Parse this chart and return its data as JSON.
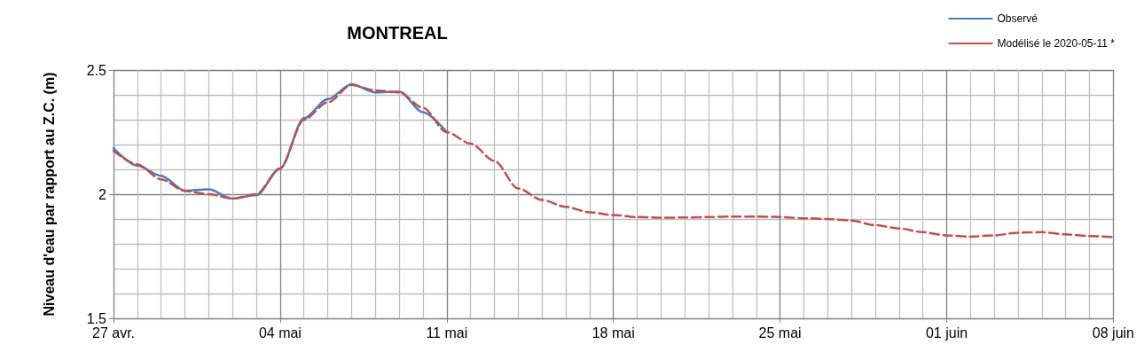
{
  "chart_data": {
    "type": "line",
    "title": "MONTREAL",
    "ylabel": "Niveau d'eau par rapport au Z.C. (m)",
    "xlim": [
      "2020-04-27",
      "2020-06-08"
    ],
    "xticks": [
      {
        "value": "2020-04-27",
        "label": "27 avr."
      },
      {
        "value": "2020-05-04",
        "label": "04 mai"
      },
      {
        "value": "2020-05-11",
        "label": "11 mai"
      },
      {
        "value": "2020-05-18",
        "label": "18 mai"
      },
      {
        "value": "2020-05-25",
        "label": "25 mai"
      },
      {
        "value": "2020-06-01",
        "label": "01 juin"
      },
      {
        "value": "2020-06-08",
        "label": "08 juin"
      }
    ],
    "ylim": [
      1.5,
      2.5
    ],
    "yticks": [
      1.5,
      2,
      2.5
    ],
    "grid": true,
    "legend": "top right",
    "marker": "none",
    "series": [
      {
        "name": "Observé",
        "color": "#4a7ebb",
        "line_style": "solid",
        "x": [
          "2020-04-27",
          "2020-04-28",
          "2020-04-29",
          "2020-04-30",
          "2020-05-01",
          "2020-05-02",
          "2020-05-03",
          "2020-05-04",
          "2020-05-05",
          "2020-05-06",
          "2020-05-07",
          "2020-05-08",
          "2020-05-09",
          "2020-05-10",
          "2020-05-11"
        ],
        "values": [
          2.185,
          2.115,
          2.074,
          2.014,
          2.02,
          1.982,
          1.996,
          2.104,
          2.306,
          2.383,
          2.443,
          2.41,
          2.413,
          2.33,
          2.25
        ]
      },
      {
        "name": "Modélisé le 2020-05-11 *",
        "color": "#c0504d",
        "line_style": "dashed",
        "x": [
          "2020-04-27",
          "2020-04-28",
          "2020-04-29",
          "2020-04-30",
          "2020-05-01",
          "2020-05-02",
          "2020-05-03",
          "2020-05-04",
          "2020-05-05",
          "2020-05-06",
          "2020-05-07",
          "2020-05-08",
          "2020-05-09",
          "2020-05-10",
          "2020-05-11",
          "2020-05-12",
          "2020-05-13",
          "2020-05-14",
          "2020-05-15",
          "2020-05-16",
          "2020-05-17",
          "2020-05-18",
          "2020-05-19",
          "2020-05-20",
          "2020-05-21",
          "2020-05-22",
          "2020-05-23",
          "2020-05-24",
          "2020-05-25",
          "2020-05-26",
          "2020-05-27",
          "2020-05-28",
          "2020-05-29",
          "2020-05-30",
          "2020-05-31",
          "2020-06-01",
          "2020-06-02",
          "2020-06-03",
          "2020-06-04",
          "2020-06-05",
          "2020-06-06",
          "2020-06-07",
          "2020-06-08"
        ],
        "values": [
          2.175,
          2.12,
          2.06,
          2.013,
          2.0,
          1.982,
          2.0,
          2.104,
          2.3,
          2.37,
          2.44,
          2.418,
          2.41,
          2.348,
          2.25,
          2.204,
          2.134,
          2.023,
          1.977,
          1.949,
          1.927,
          1.916,
          1.908,
          1.905,
          1.906,
          1.908,
          1.91,
          1.91,
          1.908,
          1.903,
          1.9,
          1.894,
          1.875,
          1.862,
          1.847,
          1.834,
          1.829,
          1.834,
          1.845,
          1.847,
          1.838,
          1.831,
          1.827
        ]
      }
    ]
  }
}
